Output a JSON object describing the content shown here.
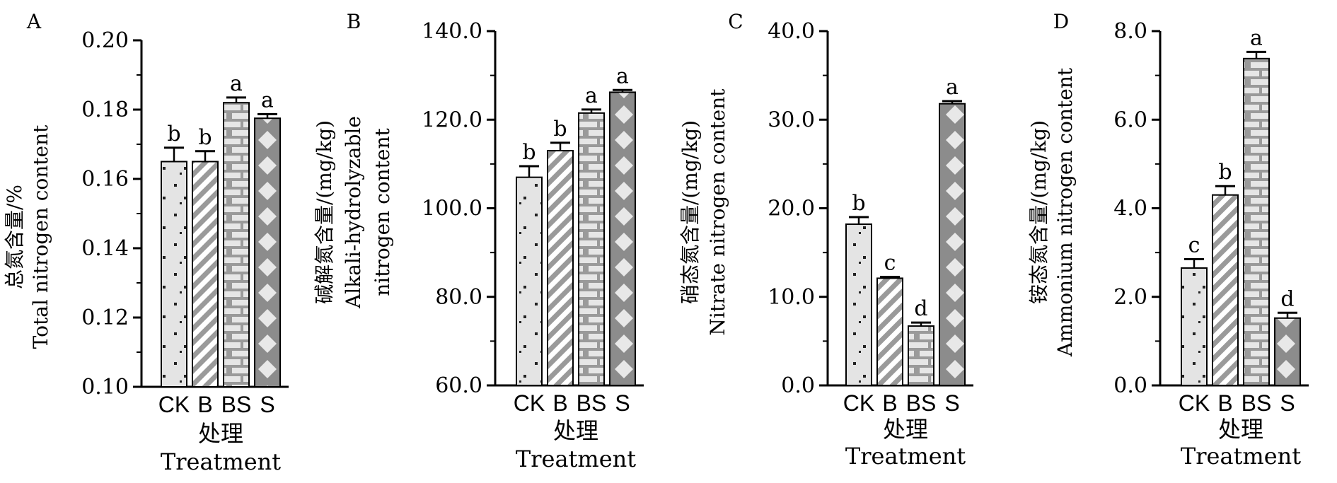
{
  "xlabel_cn": "处理",
  "xlabel_en": "Treatment",
  "chart_data": [
    {
      "type": "bar",
      "panel": "A",
      "categories": [
        "CK",
        "B",
        "BS",
        "S"
      ],
      "values": [
        0.165,
        0.165,
        0.182,
        0.1775
      ],
      "errors": [
        0.004,
        0.003,
        0.0015,
        0.0012
      ],
      "significance": [
        "b",
        "b",
        "a",
        "a"
      ],
      "ylabel": [
        "总氮含量/%",
        "Total nitrogen content"
      ],
      "ylim": [
        0.1,
        0.2
      ],
      "yticks": [
        "0.10",
        "0.12",
        "0.14",
        "0.16",
        "0.18",
        "0.20"
      ]
    },
    {
      "type": "bar",
      "panel": "B",
      "categories": [
        "CK",
        "B",
        "BS",
        "S"
      ],
      "values": [
        107.0,
        113.0,
        121.5,
        126.2
      ],
      "errors": [
        2.5,
        1.8,
        0.8,
        0.5
      ],
      "significance": [
        "b",
        "b",
        "a",
        "a"
      ],
      "ylabel": [
        "碱解氮含量/(mg/kg)",
        "Alkali-hydrolyzable",
        "nitrogen content"
      ],
      "ylim": [
        60.0,
        140.0
      ],
      "yticks": [
        "60.0",
        "80.0",
        "100.0",
        "120.0",
        "140.0"
      ]
    },
    {
      "type": "bar",
      "panel": "C",
      "categories": [
        "CK",
        "B",
        "BS",
        "S"
      ],
      "values": [
        18.2,
        12.1,
        6.7,
        31.8
      ],
      "errors": [
        0.8,
        0.15,
        0.4,
        0.3
      ],
      "significance": [
        "b",
        "c",
        "d",
        "a"
      ],
      "ylabel": [
        "硝态氮含量/(mg/kg)",
        "Nitrate nitrogen content"
      ],
      "ylim": [
        0.0,
        40.0
      ],
      "yticks": [
        "0.0",
        "10.0",
        "20.0",
        "30.0",
        "40.0"
      ]
    },
    {
      "type": "bar",
      "panel": "D",
      "categories": [
        "CK",
        "B",
        "BS",
        "S"
      ],
      "values": [
        2.65,
        4.3,
        7.38,
        1.52
      ],
      "errors": [
        0.2,
        0.2,
        0.15,
        0.12
      ],
      "significance": [
        "c",
        "b",
        "a",
        "d"
      ],
      "ylabel": [
        "铵态氮含量/(mg/kg)",
        "Ammonium nitrogen content"
      ],
      "ylim": [
        0.0,
        8.0
      ],
      "yticks": [
        "0.0",
        "2.0",
        "4.0",
        "6.0",
        "8.0"
      ]
    }
  ]
}
